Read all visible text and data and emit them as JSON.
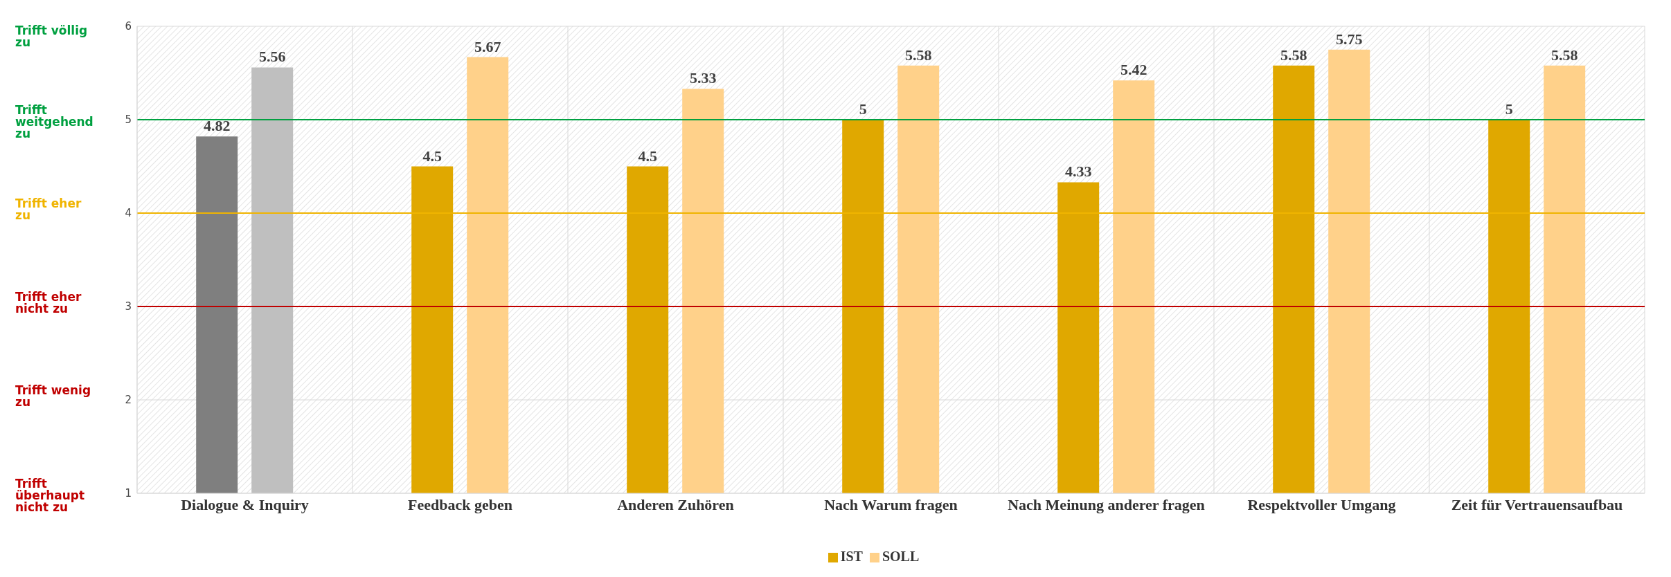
{
  "chart_data": {
    "type": "bar",
    "categories": [
      "Dialogue & Inquiry",
      "Feedback geben",
      "Anderen Zuhören",
      "Nach Warum fragen",
      "Nach Meinung anderer fragen",
      "Respektvoller Umgang",
      "Zeit für Vertrauensaufbau"
    ],
    "series": [
      {
        "name": "IST",
        "color": "#e0a800",
        "colors": [
          "#7f7f7f",
          "#e0a800",
          "#e0a800",
          "#e0a800",
          "#e0a800",
          "#e0a800",
          "#e0a800"
        ],
        "values": [
          4.82,
          4.5,
          4.5,
          5,
          4.33,
          5.58,
          5
        ]
      },
      {
        "name": "SOLL",
        "color": "#ffd18a",
        "colors": [
          "#bfbfbf",
          "#ffd18a",
          "#ffd18a",
          "#ffd18a",
          "#ffd18a",
          "#ffd18a",
          "#ffd18a"
        ],
        "values": [
          5.56,
          5.67,
          5.33,
          5.58,
          5.42,
          5.75,
          5.58
        ]
      }
    ],
    "ylim": [
      1,
      6
    ],
    "yticks": [
      1,
      2,
      3,
      4,
      5,
      6
    ],
    "grid": true,
    "legend": "bottom",
    "data_labels": true,
    "ref_lines": [
      {
        "axis": "y",
        "value": 5,
        "color": "#00a040"
      },
      {
        "axis": "y",
        "value": 4,
        "color": "#f0b400"
      },
      {
        "axis": "y",
        "value": 3,
        "color": "#c00000"
      }
    ],
    "annotations": [
      "Trifft völlig zu",
      "Trifft weitgehend zu",
      "Trifft eher zu",
      "Trifft eher nicht zu",
      "Trifft wenig zu",
      "Trifft überhaupt nicht zu"
    ]
  }
}
